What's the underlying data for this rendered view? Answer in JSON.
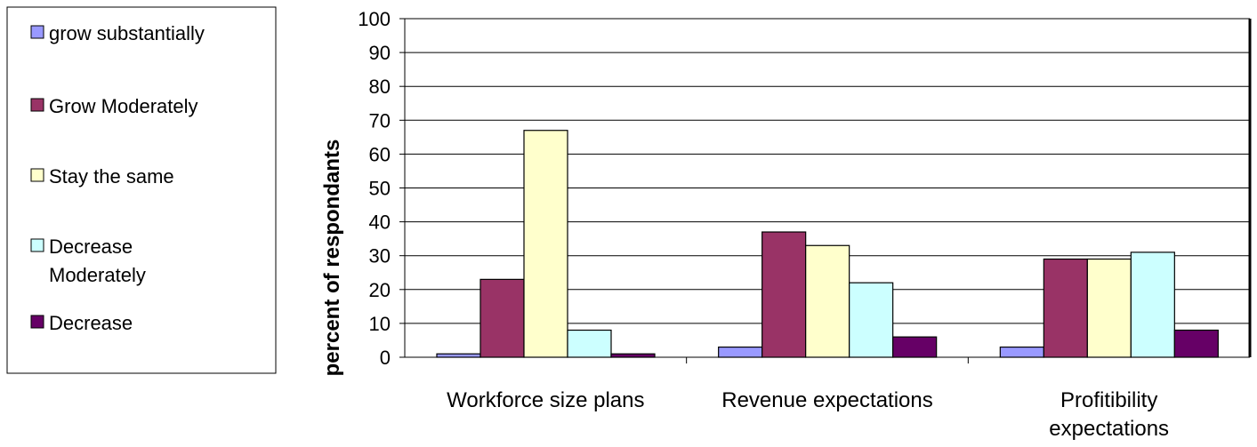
{
  "chart_data": {
    "type": "bar",
    "title": "",
    "xlabel": "",
    "ylabel": "percent of respondants",
    "ylim": [
      0,
      100
    ],
    "yticks": [
      0,
      10,
      20,
      30,
      40,
      50,
      60,
      70,
      80,
      90,
      100
    ],
    "grid": true,
    "legend_position": "left",
    "categories": [
      [
        "Workforce size plans"
      ],
      [
        "Revenue expectations"
      ],
      [
        "Profitibility",
        "expectations"
      ]
    ],
    "series": [
      {
        "name": [
          "grow substantially"
        ],
        "color": "#9999ff",
        "values": [
          1,
          3,
          3
        ]
      },
      {
        "name": [
          "Grow Moderately"
        ],
        "color": "#993366",
        "values": [
          23,
          37,
          29
        ]
      },
      {
        "name": [
          "Stay the same"
        ],
        "color": "#ffffcc",
        "values": [
          67,
          33,
          29
        ]
      },
      {
        "name": [
          "Decrease",
          "Moderately"
        ],
        "color": "#ccffff",
        "values": [
          8,
          22,
          31
        ]
      },
      {
        "name": [
          "Decrease"
        ],
        "color": "#660066",
        "values": [
          1,
          6,
          8
        ]
      }
    ]
  }
}
